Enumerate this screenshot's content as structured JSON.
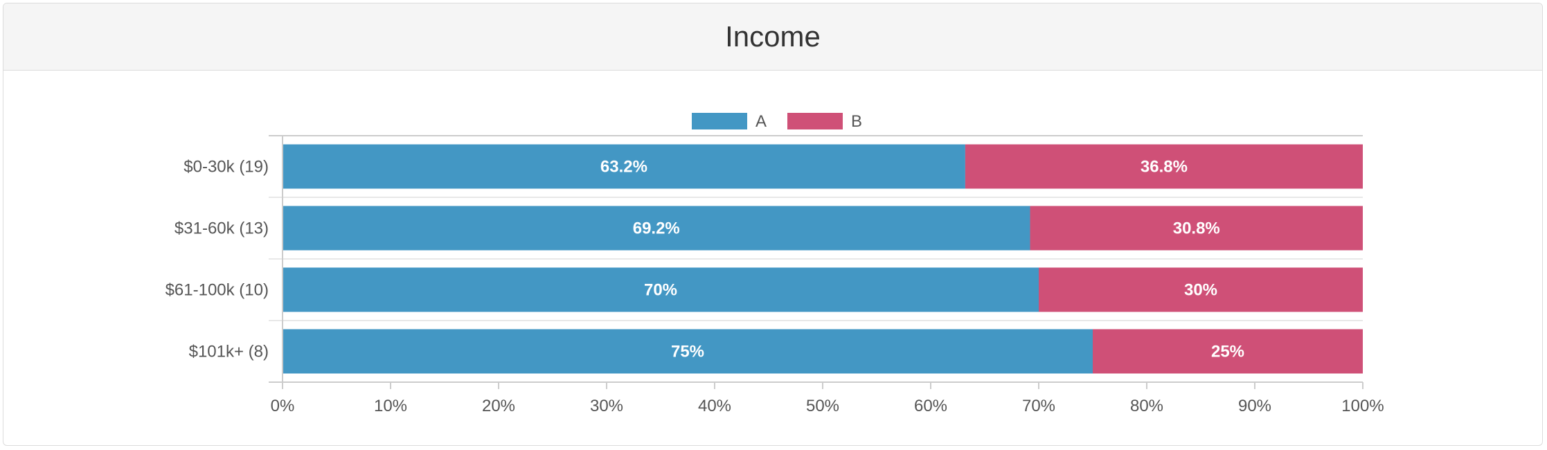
{
  "panel": {
    "title": "Income"
  },
  "colors": {
    "A": "#4397c4",
    "B": "#cf5077",
    "axis": "#cccccc",
    "gridSeparator": "#e8e8e8"
  },
  "chart_data": {
    "type": "bar",
    "orientation": "horizontal",
    "stacked": true,
    "title": "Income",
    "categories": [
      "$0-30k (19)",
      "$31-60k (13)",
      "$61-100k (10)",
      "$101k+ (8)"
    ],
    "series": [
      {
        "name": "A",
        "values": [
          63.2,
          69.2,
          70,
          75
        ],
        "labels": [
          "63.2%",
          "69.2%",
          "70%",
          "75%"
        ]
      },
      {
        "name": "B",
        "values": [
          36.8,
          30.8,
          30,
          25
        ],
        "labels": [
          "36.8%",
          "30.8%",
          "30%",
          "25%"
        ]
      }
    ],
    "xlim": [
      0,
      100
    ],
    "x_ticks": [
      "0%",
      "10%",
      "20%",
      "30%",
      "40%",
      "50%",
      "60%",
      "70%",
      "80%",
      "90%",
      "100%"
    ],
    "legend": "top-center",
    "grid": false
  }
}
